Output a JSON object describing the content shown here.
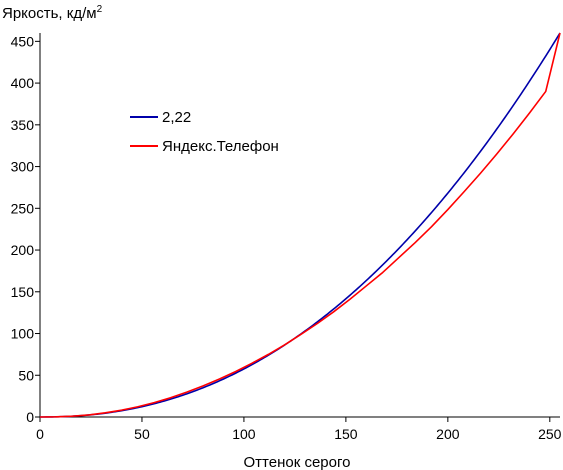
{
  "chart_data": {
    "type": "line",
    "title": "",
    "ylabel": "Яркость, кд/м",
    "ylabel_sup": "2",
    "xlabel": "Оттенок серого",
    "xlim": [
      0,
      255
    ],
    "ylim": [
      0,
      460
    ],
    "xticks": [
      0,
      50,
      100,
      150,
      200,
      250
    ],
    "yticks": [
      0,
      50,
      100,
      150,
      200,
      250,
      300,
      350,
      400,
      450
    ],
    "grid": false,
    "legend_position": "upper-left",
    "series": [
      {
        "name": "2,22",
        "color": "#0000aa",
        "formula": "gamma",
        "gamma": 2.22,
        "ymax": 460
      },
      {
        "name": "Яндекс.Телефон",
        "color": "#ff0000",
        "x": [
          0,
          8,
          16,
          24,
          32,
          40,
          48,
          56,
          64,
          72,
          80,
          88,
          96,
          104,
          112,
          120,
          128,
          136,
          144,
          152,
          160,
          168,
          176,
          184,
          192,
          200,
          208,
          216,
          224,
          232,
          240,
          248,
          255
        ],
        "y": [
          0,
          0.2,
          1.0,
          2.5,
          5.0,
          8.2,
          12.3,
          17.2,
          23.0,
          29.8,
          37.3,
          45.5,
          54.5,
          64.5,
          75.0,
          86.5,
          99.0,
          112.0,
          126.0,
          141.0,
          157.0,
          173.0,
          191.0,
          209.0,
          228.0,
          248.5,
          270.0,
          292.0,
          315.0,
          339.0,
          364.0,
          390.0,
          460.0
        ]
      }
    ]
  }
}
